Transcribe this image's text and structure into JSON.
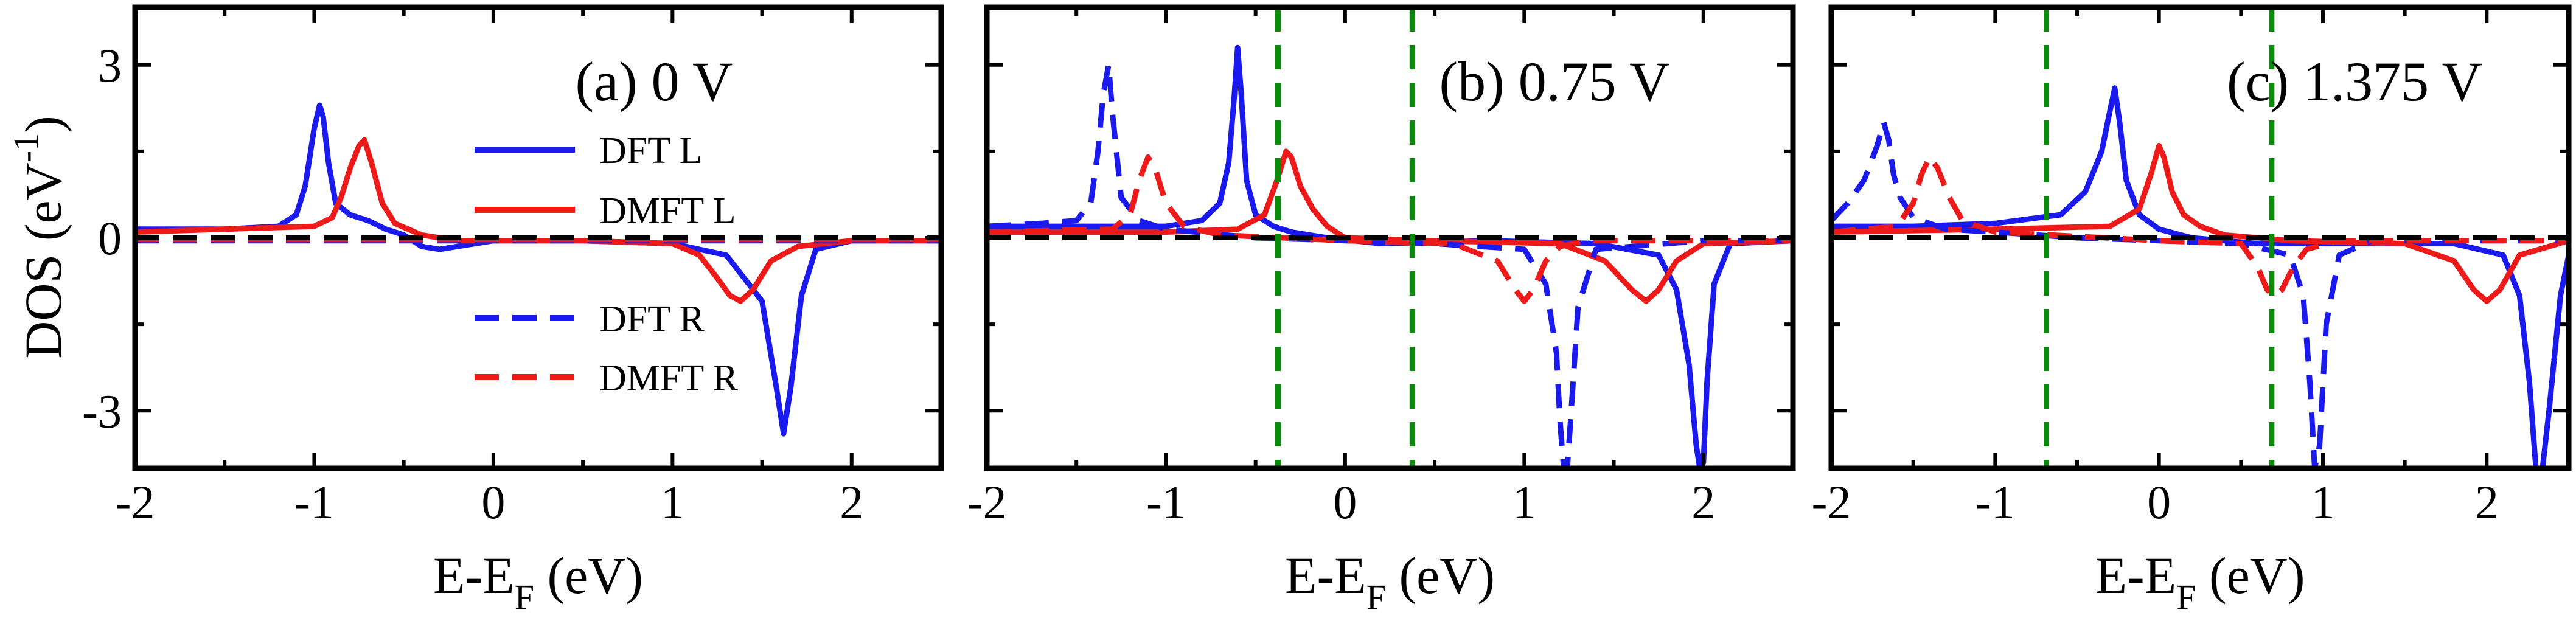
{
  "figure": {
    "ylabel": "DOS (eV",
    "ylabel_sup": "-1",
    "ylabel_close": ")",
    "xlabel_main": "E-E",
    "xlabel_sub": "F",
    "xlabel_unit": " (eV)"
  },
  "legend": {
    "entries": [
      {
        "label": "DFT L",
        "color": "#1a1aee",
        "dash": "solid"
      },
      {
        "label": "DMFT L",
        "color": "#ee1a1a",
        "dash": "solid"
      },
      {
        "label": "DFT R",
        "color": "#1a1aee",
        "dash": "dashed"
      },
      {
        "label": "DMFT R",
        "color": "#ee1a1a",
        "dash": "dashed"
      }
    ]
  },
  "chart_data": [
    {
      "type": "line",
      "title": "(a) 0 V",
      "xlabel": "E-E_F (eV)",
      "ylabel": "DOS (eV^-1)",
      "xlim": [
        -2,
        2.5
      ],
      "ylim": [
        -4,
        4
      ],
      "xticks": [
        "-2",
        "-1",
        "0",
        "1",
        "2"
      ],
      "xtick_values": [
        -2,
        -1,
        0,
        1,
        2
      ],
      "yticks": [
        "3",
        "0",
        "-3"
      ],
      "ytick_values": [
        3,
        0,
        -3
      ],
      "bias_lines": [],
      "series": [
        {
          "name": "DFT L",
          "x": [
            -2.0,
            -1.5,
            -1.2,
            -1.1,
            -1.05,
            -1.0,
            -0.97,
            -0.95,
            -0.92,
            -0.88,
            -0.8,
            -0.7,
            -0.6,
            -0.5,
            -0.4,
            -0.3,
            -0.2,
            0,
            0.5,
            1.0,
            1.3,
            1.5,
            1.58,
            1.62,
            1.66,
            1.72,
            1.8,
            2.0,
            2.5
          ],
          "y": [
            0.15,
            0.15,
            0.2,
            0.4,
            0.9,
            1.9,
            2.3,
            2.1,
            1.3,
            0.6,
            0.4,
            0.3,
            0.15,
            0.05,
            -0.15,
            -0.2,
            -0.15,
            -0.05,
            -0.05,
            -0.1,
            -0.3,
            -1.1,
            -2.6,
            -3.4,
            -2.6,
            -1.0,
            -0.2,
            -0.05,
            -0.05
          ]
        },
        {
          "name": "DMFT L",
          "x": [
            -2.0,
            -1.5,
            -1.0,
            -0.9,
            -0.85,
            -0.8,
            -0.75,
            -0.72,
            -0.68,
            -0.62,
            -0.55,
            -0.4,
            -0.2,
            0,
            0.5,
            1.0,
            1.15,
            1.25,
            1.32,
            1.38,
            1.45,
            1.55,
            1.7,
            2.0,
            2.5
          ],
          "y": [
            0.1,
            0.15,
            0.2,
            0.35,
            0.7,
            1.2,
            1.6,
            1.7,
            1.3,
            0.6,
            0.25,
            0.05,
            -0.05,
            -0.05,
            -0.05,
            -0.1,
            -0.3,
            -0.7,
            -1.0,
            -1.1,
            -0.9,
            -0.4,
            -0.15,
            -0.05,
            -0.05
          ]
        },
        {
          "name": "DFT R",
          "x": [
            -2.0,
            -1.0,
            0,
            1.0,
            2.0,
            2.5
          ],
          "y": [
            -0.05,
            -0.05,
            -0.05,
            -0.05,
            -0.05,
            -0.05
          ]
        },
        {
          "name": "DMFT R",
          "x": [
            -2.0,
            -1.0,
            0,
            1.0,
            2.0,
            2.5
          ],
          "y": [
            -0.03,
            -0.03,
            -0.03,
            -0.03,
            -0.03,
            -0.03
          ]
        },
        {
          "name": "zero",
          "x": [
            -2.0,
            2.5
          ],
          "y": [
            0,
            0
          ]
        }
      ]
    },
    {
      "type": "line",
      "title": "(b)  0.75 V",
      "xlabel": "E-E_F (eV)",
      "ylabel": "DOS (eV^-1)",
      "xlim": [
        -2,
        2.5
      ],
      "ylim": [
        -4,
        4
      ],
      "xticks": [
        "-2",
        "-1",
        "0",
        "1",
        "2"
      ],
      "xtick_values": [
        -2,
        -1,
        0,
        1,
        2
      ],
      "yticks": [
        "3",
        "0",
        "-3"
      ],
      "ytick_values": [
        3,
        0,
        -3
      ],
      "bias_lines": [
        -0.375,
        0.375
      ],
      "series": [
        {
          "name": "DFT L",
          "x": [
            -2.0,
            -1.5,
            -1.0,
            -0.8,
            -0.7,
            -0.65,
            -0.62,
            -0.6,
            -0.58,
            -0.55,
            -0.5,
            -0.4,
            -0.3,
            -0.1,
            0.2,
            0.8,
            1.4,
            1.75,
            1.85,
            1.92,
            1.96,
            1.98,
            2.0,
            2.02,
            2.06,
            2.15,
            2.5
          ],
          "y": [
            0.2,
            0.2,
            0.2,
            0.3,
            0.6,
            1.3,
            2.4,
            3.3,
            2.5,
            1.0,
            0.4,
            0.2,
            0.1,
            0.0,
            -0.1,
            -0.05,
            -0.1,
            -0.3,
            -0.9,
            -2.2,
            -3.6,
            -4.0,
            -3.9,
            -2.5,
            -0.8,
            -0.1,
            -0.05
          ]
        },
        {
          "name": "DMFT L",
          "x": [
            -2.0,
            -1.0,
            -0.6,
            -0.45,
            -0.38,
            -0.33,
            -0.3,
            -0.25,
            -0.18,
            -0.1,
            0,
            0.5,
            1.2,
            1.45,
            1.6,
            1.68,
            1.75,
            1.85,
            2.0,
            2.5
          ],
          "y": [
            0.1,
            0.1,
            0.15,
            0.4,
            1.0,
            1.5,
            1.4,
            0.9,
            0.5,
            0.2,
            0.0,
            -0.05,
            -0.1,
            -0.4,
            -0.9,
            -1.1,
            -0.9,
            -0.4,
            -0.1,
            -0.05
          ]
        },
        {
          "name": "DFT R",
          "x": [
            -2.0,
            -1.7,
            -1.5,
            -1.42,
            -1.38,
            -1.35,
            -1.32,
            -1.3,
            -1.25,
            -1.15,
            -1.0,
            -0.5,
            0,
            0.5,
            1.0,
            1.12,
            1.18,
            1.2,
            1.22,
            1.24,
            1.26,
            1.3,
            1.4,
            2.0,
            2.5
          ],
          "y": [
            0.2,
            0.25,
            0.3,
            0.6,
            1.5,
            2.5,
            3.0,
            2.2,
            0.7,
            0.3,
            0.15,
            0.0,
            -0.05,
            -0.1,
            -0.2,
            -0.8,
            -2.0,
            -3.2,
            -4.0,
            -4.0,
            -3.1,
            -1.2,
            -0.2,
            -0.05,
            -0.05
          ]
        },
        {
          "name": "DMFT R",
          "x": [
            -2.0,
            -1.3,
            -1.2,
            -1.15,
            -1.1,
            -1.06,
            -1.0,
            -0.9,
            -0.7,
            0,
            0.6,
            0.85,
            0.95,
            1.0,
            1.05,
            1.12,
            1.2,
            1.35,
            2.0,
            2.5
          ],
          "y": [
            0.1,
            0.15,
            0.4,
            1.0,
            1.4,
            1.2,
            0.6,
            0.2,
            0.05,
            -0.05,
            -0.1,
            -0.4,
            -0.9,
            -1.1,
            -0.9,
            -0.4,
            -0.15,
            -0.05,
            -0.05,
            -0.05
          ]
        },
        {
          "name": "zero",
          "x": [
            -2.0,
            2.5
          ],
          "y": [
            0,
            0
          ]
        }
      ]
    },
    {
      "type": "line",
      "title": "(c) 1.375 V",
      "xlabel": "E-E_F (eV)",
      "ylabel": "DOS (eV^-1)",
      "xlim": [
        -2,
        2.5
      ],
      "ylim": [
        -4,
        4
      ],
      "xticks": [
        "-2",
        "-1",
        "0",
        "1",
        "2"
      ],
      "xtick_values": [
        -2,
        -1,
        0,
        1,
        2
      ],
      "yticks": [
        "3",
        "0",
        "-3"
      ],
      "ytick_values": [
        3,
        0,
        -3
      ],
      "bias_lines": [
        -0.6875,
        0.6875
      ],
      "series": [
        {
          "name": "DFT L",
          "x": [
            -2.0,
            -1.5,
            -1.0,
            -0.6,
            -0.45,
            -0.35,
            -0.3,
            -0.27,
            -0.24,
            -0.2,
            -0.12,
            0,
            0.2,
            0.6,
            1.2,
            1.8,
            2.1,
            2.2,
            2.26,
            2.3,
            2.34,
            2.38,
            2.45,
            2.5
          ],
          "y": [
            0.2,
            0.2,
            0.25,
            0.4,
            0.8,
            1.5,
            2.2,
            2.6,
            2.0,
            1.0,
            0.4,
            0.15,
            0.0,
            -0.1,
            -0.1,
            -0.1,
            -0.3,
            -1.0,
            -2.5,
            -4.0,
            -4.0,
            -3.0,
            -1.0,
            -0.3
          ]
        },
        {
          "name": "DMFT L",
          "x": [
            -2.0,
            -1.0,
            -0.3,
            -0.12,
            -0.05,
            0.0,
            0.03,
            0.08,
            0.15,
            0.25,
            0.4,
            0.8,
            1.5,
            1.8,
            1.92,
            2.0,
            2.08,
            2.2,
            2.5
          ],
          "y": [
            0.1,
            0.15,
            0.2,
            0.5,
            1.1,
            1.6,
            1.4,
            0.8,
            0.4,
            0.2,
            0.05,
            -0.05,
            -0.1,
            -0.4,
            -0.9,
            -1.1,
            -0.9,
            -0.3,
            -0.05
          ]
        },
        {
          "name": "DFT R",
          "x": [
            -2.0,
            -1.9,
            -1.8,
            -1.72,
            -1.68,
            -1.65,
            -1.62,
            -1.58,
            -1.5,
            -1.3,
            -1.0,
            -0.5,
            0,
            0.5,
            0.8,
            0.88,
            0.92,
            0.95,
            0.98,
            1.02,
            1.1,
            1.3,
            2.0,
            2.5
          ],
          "y": [
            0.3,
            0.6,
            1.0,
            1.6,
            2.0,
            1.7,
            1.1,
            0.7,
            0.35,
            0.15,
            0.1,
            0.0,
            -0.05,
            -0.1,
            -0.3,
            -1.0,
            -2.5,
            -4.0,
            -3.6,
            -1.5,
            -0.3,
            -0.05,
            -0.05,
            -0.05
          ]
        },
        {
          "name": "DMFT R",
          "x": [
            -2.0,
            -1.6,
            -1.5,
            -1.45,
            -1.4,
            -1.35,
            -1.28,
            -1.2,
            -1.0,
            0,
            0.5,
            0.6,
            0.66,
            0.7,
            0.75,
            0.82,
            0.9,
            1.1,
            2.0,
            2.5
          ],
          "y": [
            0.1,
            0.2,
            0.6,
            1.1,
            1.4,
            1.2,
            0.7,
            0.3,
            0.1,
            -0.05,
            -0.1,
            -0.5,
            -0.9,
            -1.0,
            -0.9,
            -0.5,
            -0.2,
            -0.05,
            -0.05,
            -0.05
          ]
        },
        {
          "name": "zero",
          "x": [
            -2.0,
            2.5
          ],
          "y": [
            0,
            0
          ]
        }
      ]
    }
  ]
}
